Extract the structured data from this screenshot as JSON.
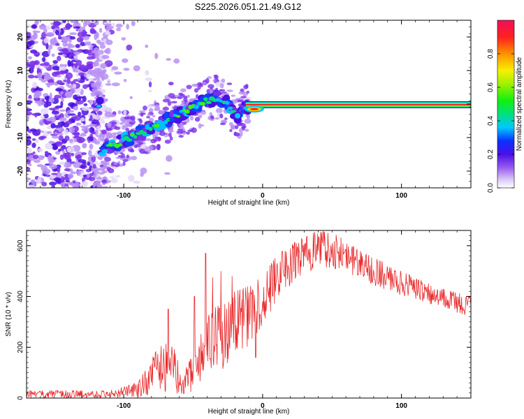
{
  "chart_data": [
    {
      "type": "heatmap",
      "title": "S225.2026.051.21.49.G12",
      "xlabel": "Height of straight line (km)",
      "ylabel": "Frequency (Hz)",
      "xlim": [
        -170,
        150
      ],
      "ylim": [
        -25,
        25
      ],
      "x_ticks": [
        -100,
        0,
        100
      ],
      "y_ticks": [
        -20,
        -10,
        0,
        10,
        20
      ],
      "colorbar": {
        "label": "Normalized spectral amplitude",
        "range": [
          0,
          1
        ],
        "ticks": [
          "0.0",
          "0.2",
          "0.4",
          "0.6",
          "0.8"
        ],
        "tick_values": [
          0,
          0.2,
          0.4,
          0.6,
          0.8
        ]
      },
      "ridge": {
        "description_points": [
          {
            "x": -117,
            "y": -14
          },
          {
            "x": -100,
            "y": -11
          },
          {
            "x": -90,
            "y": -9
          },
          {
            "x": -80,
            "y": -7
          },
          {
            "x": -70,
            "y": -5
          },
          {
            "x": -60,
            "y": -3
          },
          {
            "x": -50,
            "y": -1
          },
          {
            "x": -40,
            "y": 1
          },
          {
            "x": -32,
            "y": 2
          },
          {
            "x": -25,
            "y": 0
          },
          {
            "x": -18,
            "y": -4
          },
          {
            "x": -12,
            "y": -1
          },
          {
            "x": 0,
            "y": -1.5
          },
          {
            "x": 10,
            "y": -0.5
          },
          {
            "x": 22,
            "y": 0
          },
          {
            "x": 150,
            "y": 0
          }
        ]
      }
    },
    {
      "type": "line",
      "xlabel": "Height of straight line (km)",
      "ylabel": "SNR (10 * v/v)",
      "xlim": [
        -170,
        150
      ],
      "ylim": [
        0,
        660
      ],
      "x_ticks": [
        -100,
        0,
        100
      ],
      "y_ticks": [
        0,
        200,
        400,
        600
      ],
      "series": [
        {
          "name": "SNR",
          "color": "#e8282a",
          "envelope": [
            {
              "x": -170,
              "lo": 0,
              "hi": 30
            },
            {
              "x": -110,
              "lo": 0,
              "hi": 30
            },
            {
              "x": -90,
              "lo": 0,
              "hi": 60
            },
            {
              "x": -75,
              "lo": 20,
              "hi": 200
            },
            {
              "x": -67,
              "lo": 20,
              "hi": 220
            },
            {
              "x": -55,
              "lo": 10,
              "hi": 120
            },
            {
              "x": -48,
              "lo": 40,
              "hi": 200
            },
            {
              "x": -40,
              "lo": 80,
              "hi": 320
            },
            {
              "x": -30,
              "lo": 100,
              "hi": 380
            },
            {
              "x": -20,
              "lo": 180,
              "hi": 420
            },
            {
              "x": -10,
              "lo": 200,
              "hi": 440
            },
            {
              "x": 0,
              "lo": 280,
              "hi": 480
            },
            {
              "x": 10,
              "lo": 380,
              "hi": 560
            },
            {
              "x": 25,
              "lo": 460,
              "hi": 620
            },
            {
              "x": 40,
              "lo": 520,
              "hi": 660
            },
            {
              "x": 55,
              "lo": 500,
              "hi": 640
            },
            {
              "x": 70,
              "lo": 470,
              "hi": 580
            },
            {
              "x": 85,
              "lo": 430,
              "hi": 540
            },
            {
              "x": 100,
              "lo": 400,
              "hi": 500
            },
            {
              "x": 115,
              "lo": 380,
              "hi": 460
            },
            {
              "x": 130,
              "lo": 350,
              "hi": 430
            },
            {
              "x": 150,
              "lo": 320,
              "hi": 400
            }
          ],
          "spikes": [
            {
              "x": -68,
              "y": 350
            },
            {
              "x": -49,
              "y": 400
            },
            {
              "x": -41,
              "y": 570
            },
            {
              "x": -36,
              "y": 475
            },
            {
              "x": -30,
              "y": 500
            },
            {
              "x": -22,
              "y": 480
            },
            {
              "x": -5,
              "y": 160
            }
          ]
        }
      ]
    }
  ]
}
